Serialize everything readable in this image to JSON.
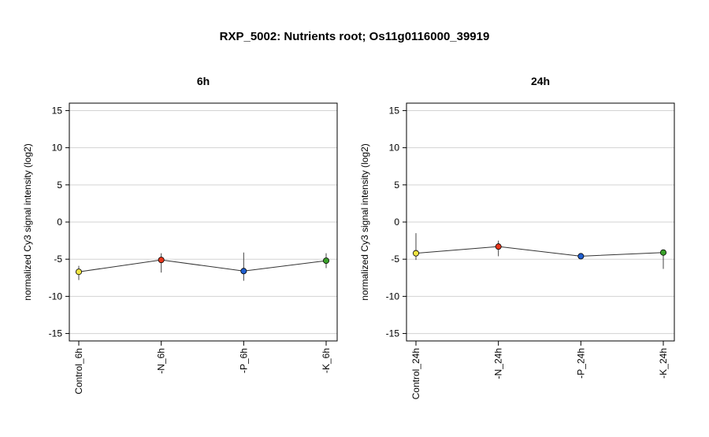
{
  "title": "RXP_5002: Nutrients root; Os11g0116000_39919",
  "chart_data": [
    {
      "type": "line",
      "title": "6h",
      "ylabel": "normalized Cy3 signal intensity (log2)",
      "ylim": [
        -16,
        16
      ],
      "yticks": [
        -15,
        -10,
        -5,
        0,
        5,
        10,
        15
      ],
      "grid": true,
      "categories": [
        "Control_6h",
        "-N_6h",
        "-P_6h",
        "-K_6h"
      ],
      "values": [
        -6.7,
        -5.1,
        -6.6,
        -5.2
      ],
      "err_low": [
        -7.8,
        -6.8,
        -7.9,
        -6.2
      ],
      "err_high": [
        -5.9,
        -4.2,
        -4.1,
        -4.2
      ],
      "colors": [
        "#f0e442",
        "#e8361b",
        "#1f5fd1",
        "#3aa02a"
      ]
    },
    {
      "type": "line",
      "title": "24h",
      "ylabel": "normalized Cy3 signal intensity (log2)",
      "ylim": [
        -16,
        16
      ],
      "yticks": [
        -15,
        -10,
        -5,
        0,
        5,
        10,
        15
      ],
      "grid": true,
      "categories": [
        "Control_24h",
        "-N_24h",
        "-P_24h",
        "-K_24h"
      ],
      "values": [
        -4.2,
        -3.3,
        -4.6,
        -4.1
      ],
      "err_low": [
        -5.1,
        -4.6,
        -4.8,
        -6.3
      ],
      "err_high": [
        -1.5,
        -2.5,
        -4.4,
        -3.7
      ],
      "colors": [
        "#f0e442",
        "#e8361b",
        "#1f5fd1",
        "#3aa02a"
      ]
    }
  ]
}
